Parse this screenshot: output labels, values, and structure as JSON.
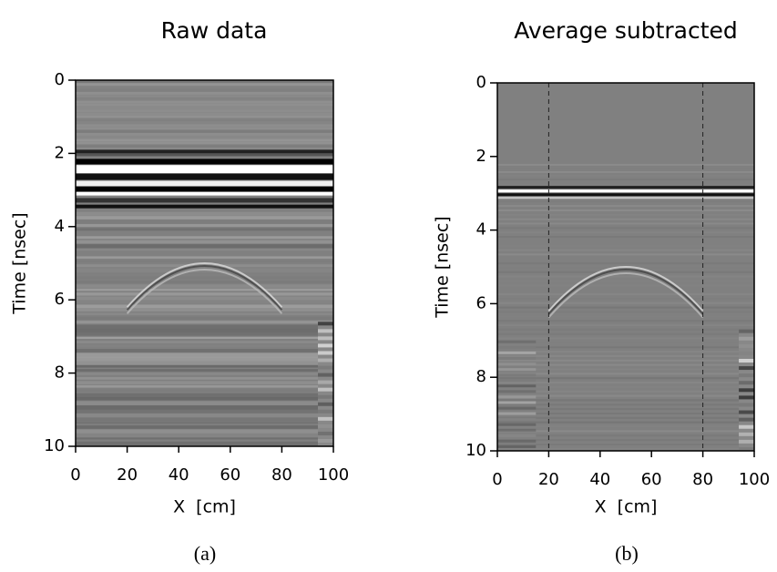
{
  "chart_data": [
    {
      "type": "image",
      "title": "Raw data",
      "xlabel": "X  [cm]",
      "ylabel": "Time [nsec]",
      "caption": "(a)",
      "xlim": [
        0,
        100
      ],
      "xticks": [
        0,
        20,
        40,
        60,
        80,
        100
      ],
      "ylim": [
        0,
        10
      ],
      "yticks": [
        0,
        2,
        4,
        6,
        8,
        10
      ],
      "y_inverted": true
    },
    {
      "type": "image",
      "title": "Average subtracted",
      "xlabel": "X  [cm]",
      "ylabel": "Time [nsec]",
      "caption": "(b)",
      "xlim": [
        0,
        100
      ],
      "xticks": [
        0,
        20,
        40,
        60,
        80,
        100
      ],
      "ylim": [
        0,
        10
      ],
      "yticks": [
        0,
        2,
        4,
        6,
        8,
        10
      ],
      "y_inverted": true,
      "vlines": [
        20,
        80
      ]
    }
  ]
}
